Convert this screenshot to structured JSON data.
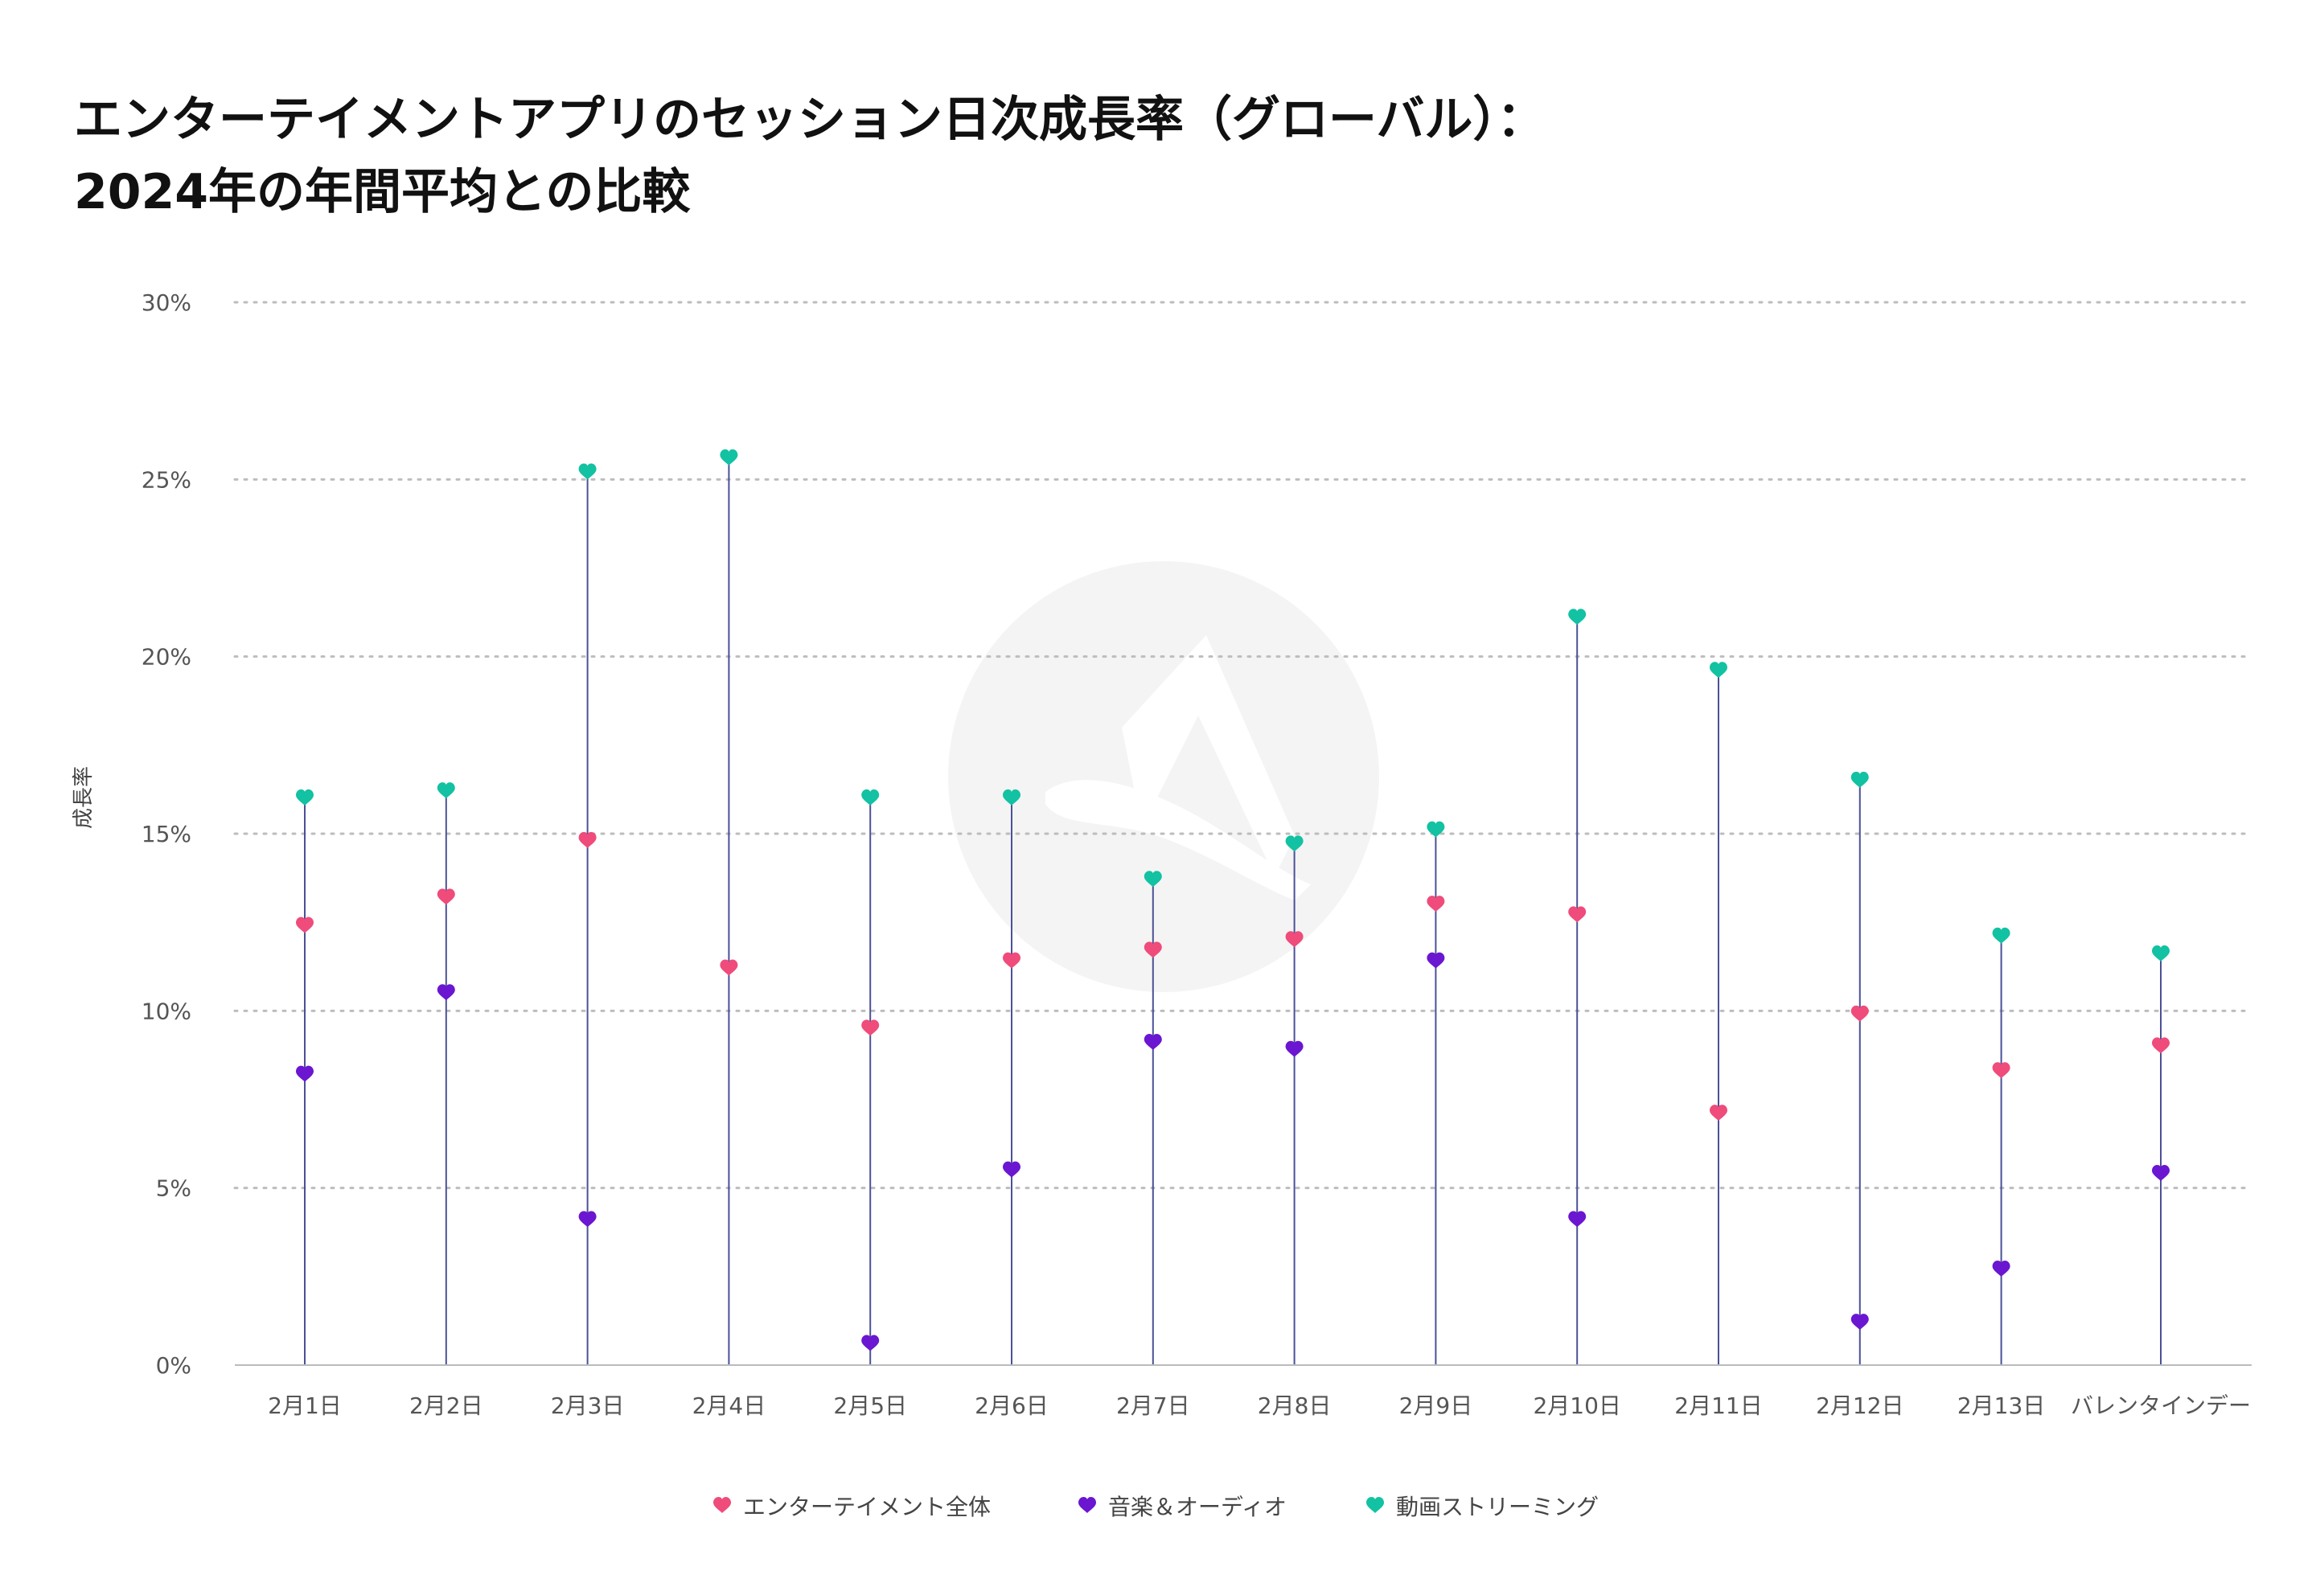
{
  "title_lines": [
    "エンターテイメントアプリのセッション日次成長率（グローバル）：",
    "2024年の年間平均との比較"
  ],
  "chart_data": {
    "type": "scatter",
    "title": "エンターテイメントアプリのセッション日次成長率（グローバル）：2024年の年間平均との比較",
    "xlabel": "",
    "ylabel": "成長率",
    "ylim": [
      0,
      30
    ],
    "yticks": [
      0,
      5,
      10,
      15,
      20,
      25,
      30
    ],
    "ytick_labels": [
      "0%",
      "5%",
      "10%",
      "15%",
      "20%",
      "25%",
      "30%"
    ],
    "grid": true,
    "legend_position": "bottom",
    "categories": [
      "2月1日",
      "2月2日",
      "2月3日",
      "2月4日",
      "2月5日",
      "2月6日",
      "2月7日",
      "2月8日",
      "2月9日",
      "2月10日",
      "2月11日",
      "2月12日",
      "2月13日",
      "バレンタインデー"
    ],
    "series": [
      {
        "name": "エンターテイメント全体",
        "color": "#EF4B7B",
        "values": [
          12.4,
          13.2,
          14.8,
          11.2,
          9.5,
          11.4,
          11.7,
          12.0,
          13.0,
          12.7,
          7.1,
          9.9,
          8.3,
          9.0
        ]
      },
      {
        "name": "音楽＆オーディオ",
        "color": "#6B16D1",
        "values": [
          8.2,
          10.5,
          4.1,
          null,
          0.6,
          5.5,
          9.1,
          8.9,
          11.4,
          4.1,
          null,
          1.2,
          2.7,
          5.4
        ]
      },
      {
        "name": "動画ストリーミング",
        "color": "#12C2A2",
        "values": [
          16.0,
          16.2,
          25.2,
          25.6,
          16.0,
          16.0,
          13.7,
          14.7,
          15.1,
          21.1,
          19.6,
          16.5,
          12.1,
          11.6
        ]
      }
    ],
    "line_color": "#4B5196",
    "grid_color": "#BDBDBD",
    "axis_color": "#BBBBBB"
  }
}
